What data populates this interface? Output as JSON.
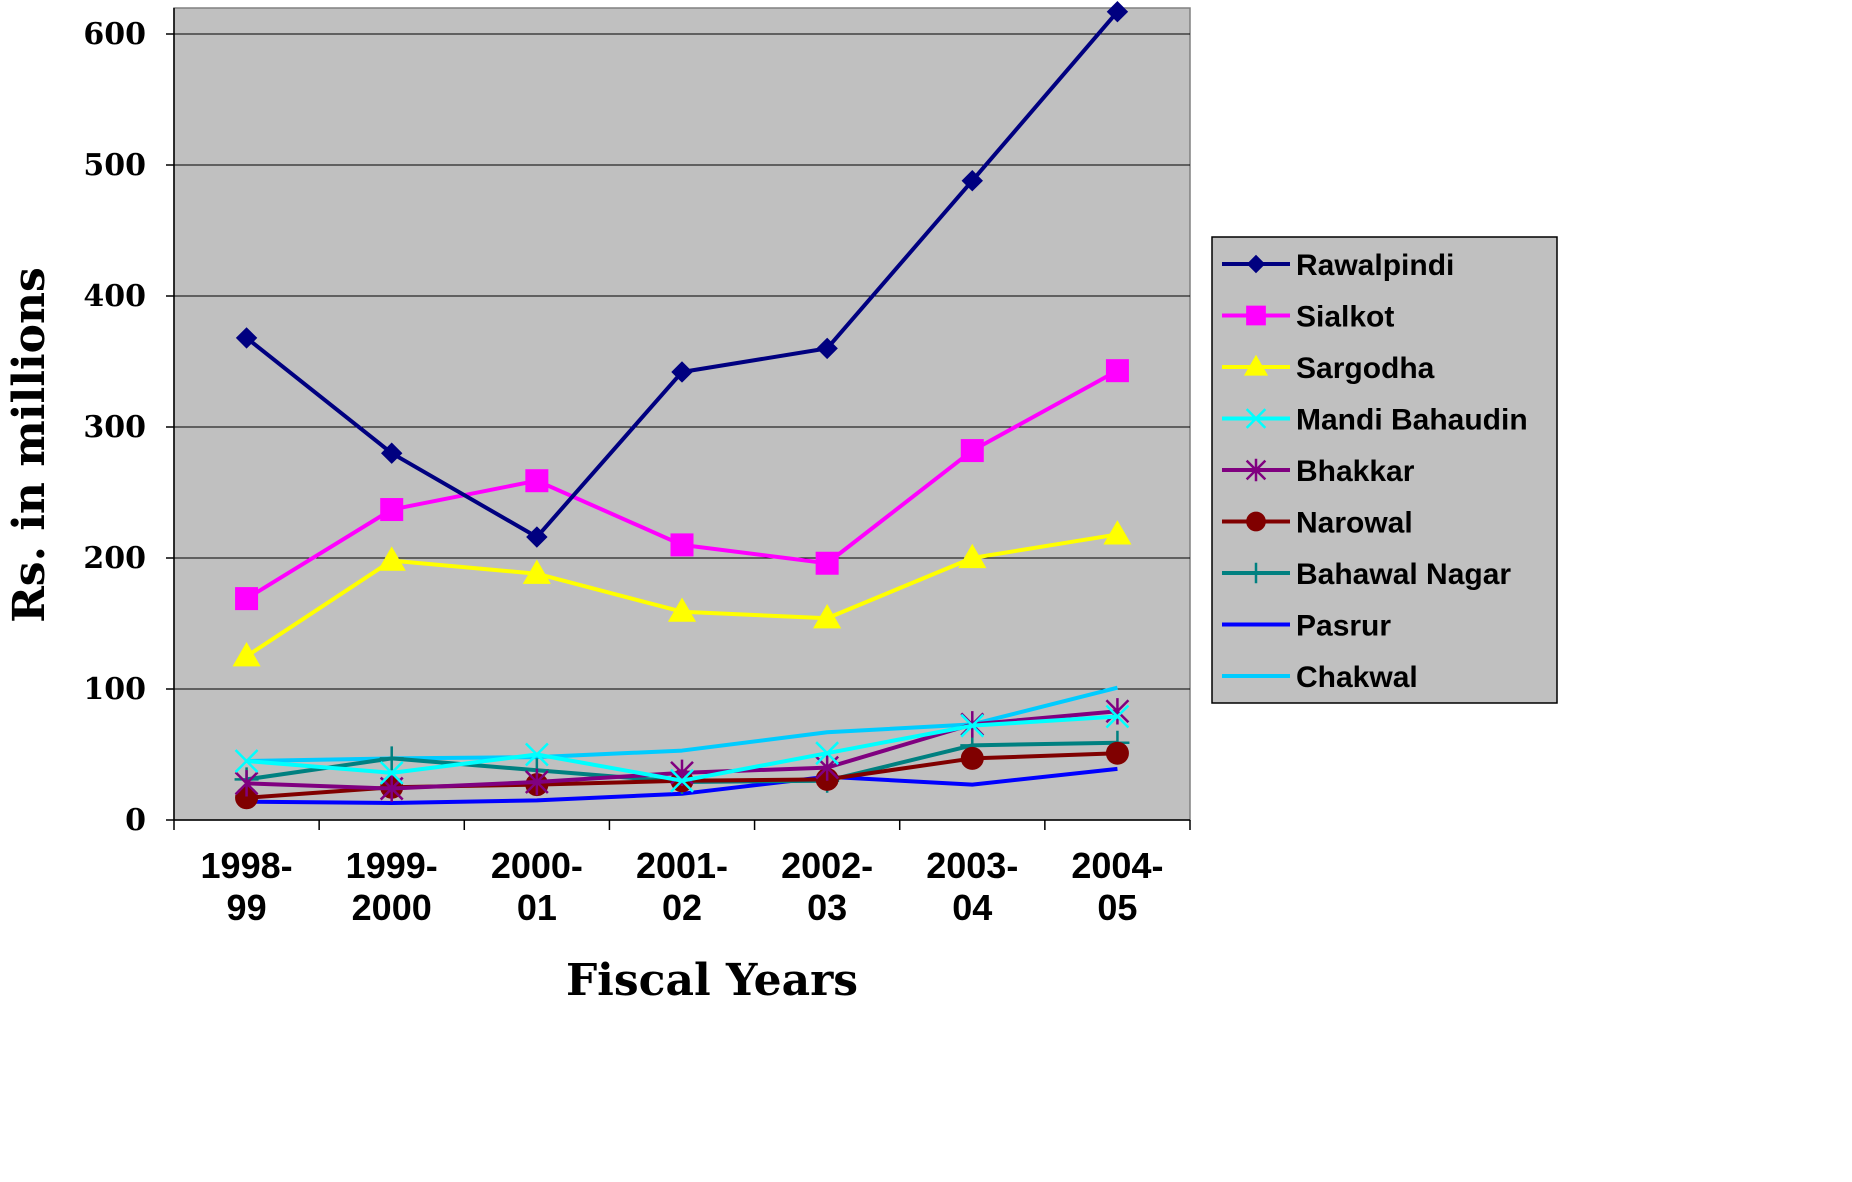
{
  "chart_data": {
    "type": "line",
    "title": "",
    "xlabel": "Fiscal Years",
    "ylabel": "Rs. in millions",
    "ylim": [
      0,
      620
    ],
    "yticks": [
      0,
      100,
      200,
      300,
      400,
      500,
      600
    ],
    "grid": "horizontal",
    "legend_position": "right",
    "plot_background": "#c0c0c0",
    "categories": [
      "1998-99",
      "1999-2000",
      "2000-01",
      "2001-02",
      "2002-03",
      "2003-04",
      "2004-05"
    ],
    "category_lines": [
      [
        "1998-",
        "99"
      ],
      [
        "1999-",
        "2000"
      ],
      [
        "2000-",
        "01"
      ],
      [
        "2001-",
        "02"
      ],
      [
        "2002-",
        "03"
      ],
      [
        "2003-",
        "04"
      ],
      [
        "2004-",
        "05"
      ]
    ],
    "series": [
      {
        "name": "Rawalpindi",
        "color": "#000080",
        "marker": "diamond",
        "values": [
          368,
          280,
          216,
          342,
          360,
          488,
          617
        ]
      },
      {
        "name": "Sialkot",
        "color": "#ff00ff",
        "marker": "square",
        "values": [
          169,
          237,
          259,
          210,
          196,
          282,
          343
        ]
      },
      {
        "name": "Sargodha",
        "color": "#ffff00",
        "marker": "triangle",
        "values": [
          125,
          198,
          188,
          159,
          154,
          200,
          218
        ]
      },
      {
        "name": "Mandi Bahaudin",
        "color": "#00ffff",
        "marker": "x",
        "values": [
          45,
          36,
          50,
          30,
          51,
          72,
          79
        ]
      },
      {
        "name": "Bhakkar",
        "color": "#800080",
        "marker": "star",
        "values": [
          28,
          24,
          29,
          36,
          40,
          73,
          83
        ]
      },
      {
        "name": "Narowal",
        "color": "#800000",
        "marker": "circle",
        "values": [
          17,
          25,
          27,
          30,
          31,
          47,
          51
        ]
      },
      {
        "name": "Bahawal Nagar",
        "color": "#008080",
        "marker": "plus",
        "values": [
          31,
          47,
          38,
          29,
          30,
          57,
          59
        ]
      },
      {
        "name": "Pasrur",
        "color": "#0000ff",
        "marker": "none",
        "values": [
          14,
          13,
          15,
          20,
          33,
          27,
          39
        ]
      },
      {
        "name": "Chakwal",
        "color": "#00ccff",
        "marker": "none",
        "values": [
          45,
          47,
          48,
          53,
          67,
          73,
          101
        ]
      }
    ]
  }
}
